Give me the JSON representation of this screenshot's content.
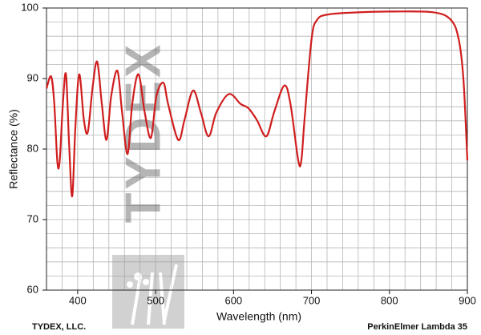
{
  "chart_data": {
    "type": "line",
    "x_label": "Wavelength (nm)",
    "y_label": "Reflectance (%)",
    "watermark": "TYDEX",
    "annotations": [
      "TYDEX, LLC.",
      "PerkinElmer Lambda 35"
    ],
    "xlim": [
      360,
      900
    ],
    "ylim": [
      60,
      100
    ],
    "xticks": [
      400,
      500,
      600,
      700,
      800,
      900
    ],
    "yticks": [
      60,
      70,
      80,
      90,
      100
    ],
    "xminorticks": [
      360,
      380,
      400,
      420,
      440,
      460,
      480,
      500,
      520,
      540,
      560,
      580,
      600,
      620,
      640,
      660,
      680,
      700,
      720,
      740,
      760,
      780,
      800,
      820,
      840,
      860,
      880,
      900
    ],
    "yminorticks": [
      60,
      62,
      64,
      66,
      68,
      70,
      72,
      74,
      76,
      78,
      80,
      82,
      84,
      86,
      88,
      90,
      92,
      94,
      96,
      98,
      100
    ],
    "grid": true,
    "series": [
      {
        "color": "#d01e1e",
        "x": [
          360,
          366,
          370,
          374,
          377,
          381,
          385,
          389,
          393,
          397,
          402,
          408,
          413,
          419,
          425,
          431,
          437,
          443,
          451,
          457,
          464,
          470,
          478,
          486,
          494,
          501,
          510,
          516,
          529,
          537,
          548,
          558,
          568,
          578,
          594,
          609,
          619,
          630,
          642,
          652,
          665,
          673,
          683,
          687,
          691,
          700,
          707,
          722,
          763,
          801,
          856,
          879,
          889,
          895,
          900
        ],
        "values": [
          88.6,
          90.3,
          86.4,
          78.1,
          78.4,
          86.4,
          90.6,
          80.7,
          73.3,
          83.0,
          90.6,
          84.1,
          82.4,
          88.6,
          92.4,
          86.4,
          81.3,
          87.5,
          91.1,
          85.2,
          79.3,
          86.4,
          90.6,
          85.2,
          81.6,
          87.5,
          89.4,
          86.4,
          81.3,
          84.1,
          88.3,
          85.2,
          81.8,
          85.2,
          87.8,
          86.4,
          85.8,
          84.1,
          81.8,
          85.2,
          89.0,
          86.4,
          78.4,
          78.4,
          84.1,
          95.5,
          98.3,
          99.1,
          99.4,
          99.5,
          99.4,
          98.3,
          95.5,
          89.8,
          78.4
        ]
      }
    ]
  }
}
